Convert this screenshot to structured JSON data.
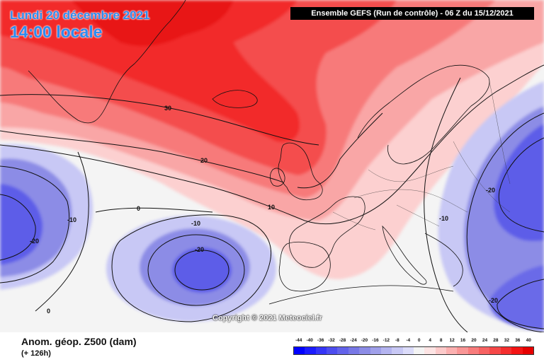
{
  "header": {
    "date": "Lundi 20 décembre 2021",
    "local_time": "14:00 locale",
    "run_info": "Ensemble GEFS  (Run de contrôle)  -  06 Z du 15/12/2021"
  },
  "footer": {
    "variable": "Anom. géop. Z500 (dam)",
    "lead_time": "(+ 126h)",
    "copyright": "Copyright © 2021 Meteociel.fr"
  },
  "legend": {
    "ticks": [
      "-44",
      "-40",
      "-36",
      "-32",
      "-28",
      "-24",
      "-20",
      "-16",
      "-12",
      "-8",
      "-4",
      "0",
      "4",
      "8",
      "12",
      "16",
      "20",
      "24",
      "28",
      "32",
      "36",
      "40"
    ],
    "colors": [
      "#0000ff",
      "#1b1bff",
      "#3535f7",
      "#4d4def",
      "#6363ea",
      "#7878e6",
      "#8c8ce6",
      "#a0a0ea",
      "#b4b4f0",
      "#c8c8f5",
      "#dcdcfa",
      "#f4f4f4",
      "#fde4e4",
      "#fccaca",
      "#fbb0b0",
      "#f99696",
      "#f87c7c",
      "#f76262",
      "#f64848",
      "#f52e2e",
      "#f41414",
      "#e60000"
    ]
  },
  "map": {
    "contour_labels": [
      "30",
      "20",
      "10",
      "0",
      "-10",
      "-20",
      "-10",
      "-20",
      "-10",
      "-20",
      "-20",
      "0"
    ],
    "background_color": "#f4f4f4",
    "positive_anomaly_color": "#ff1e1e",
    "negative_anomaly_color": "#4040e6"
  }
}
